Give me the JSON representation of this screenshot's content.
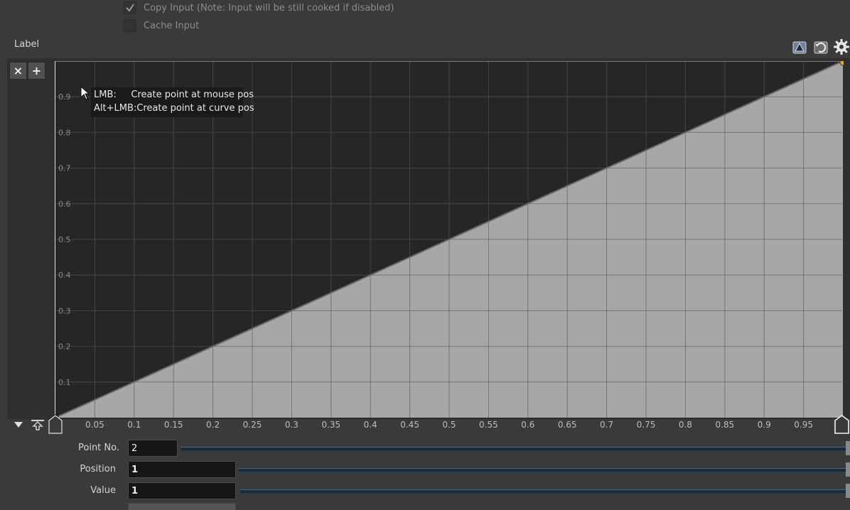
{
  "toggles": {
    "copy_input": {
      "label": "Copy Input (Note: Input will be still cooked if disabled)",
      "checked": true
    },
    "cache_input": {
      "label": "Cache Input",
      "checked": false
    }
  },
  "ramp": {
    "label": "Label",
    "remove_point_label": "×",
    "add_point_label": "+",
    "toolbar_icons": [
      "ramp-view-icon",
      "ramp-reset-icon",
      "gear-icon"
    ],
    "tooltip": "LMB:     Create point at mouse pos\nAlt+LMB:Create point at curve pos"
  },
  "chart_data": {
    "type": "area",
    "xlim": [
      0,
      1
    ],
    "ylim": [
      0,
      1
    ],
    "grid": true,
    "x_ticks": [
      "0.05",
      "0.1",
      "0.15",
      "0.2",
      "0.25",
      "0.3",
      "0.35",
      "0.4",
      "0.45",
      "0.5",
      "0.55",
      "0.6",
      "0.65",
      "0.7",
      "0.75",
      "0.8",
      "0.85",
      "0.9",
      "0.95"
    ],
    "y_ticks": [
      "0.1",
      "0.2",
      "0.3",
      "0.4",
      "0.5",
      "0.6",
      "0.7",
      "0.8",
      "0.9"
    ],
    "points": [
      {
        "x": 0,
        "y": 0
      },
      {
        "x": 1,
        "y": 1
      }
    ],
    "selected_point": 2
  },
  "params": {
    "point_no": {
      "label": "Point No.",
      "value": "2"
    },
    "position": {
      "label": "Position",
      "value": "1"
    },
    "value": {
      "label": "Value",
      "value": "1"
    }
  },
  "colors": {
    "ramp_fill": "#a7a7a7",
    "ramp_background": "#262626",
    "grid": "#4a4a4a",
    "selected_point": "#e8a33a"
  }
}
